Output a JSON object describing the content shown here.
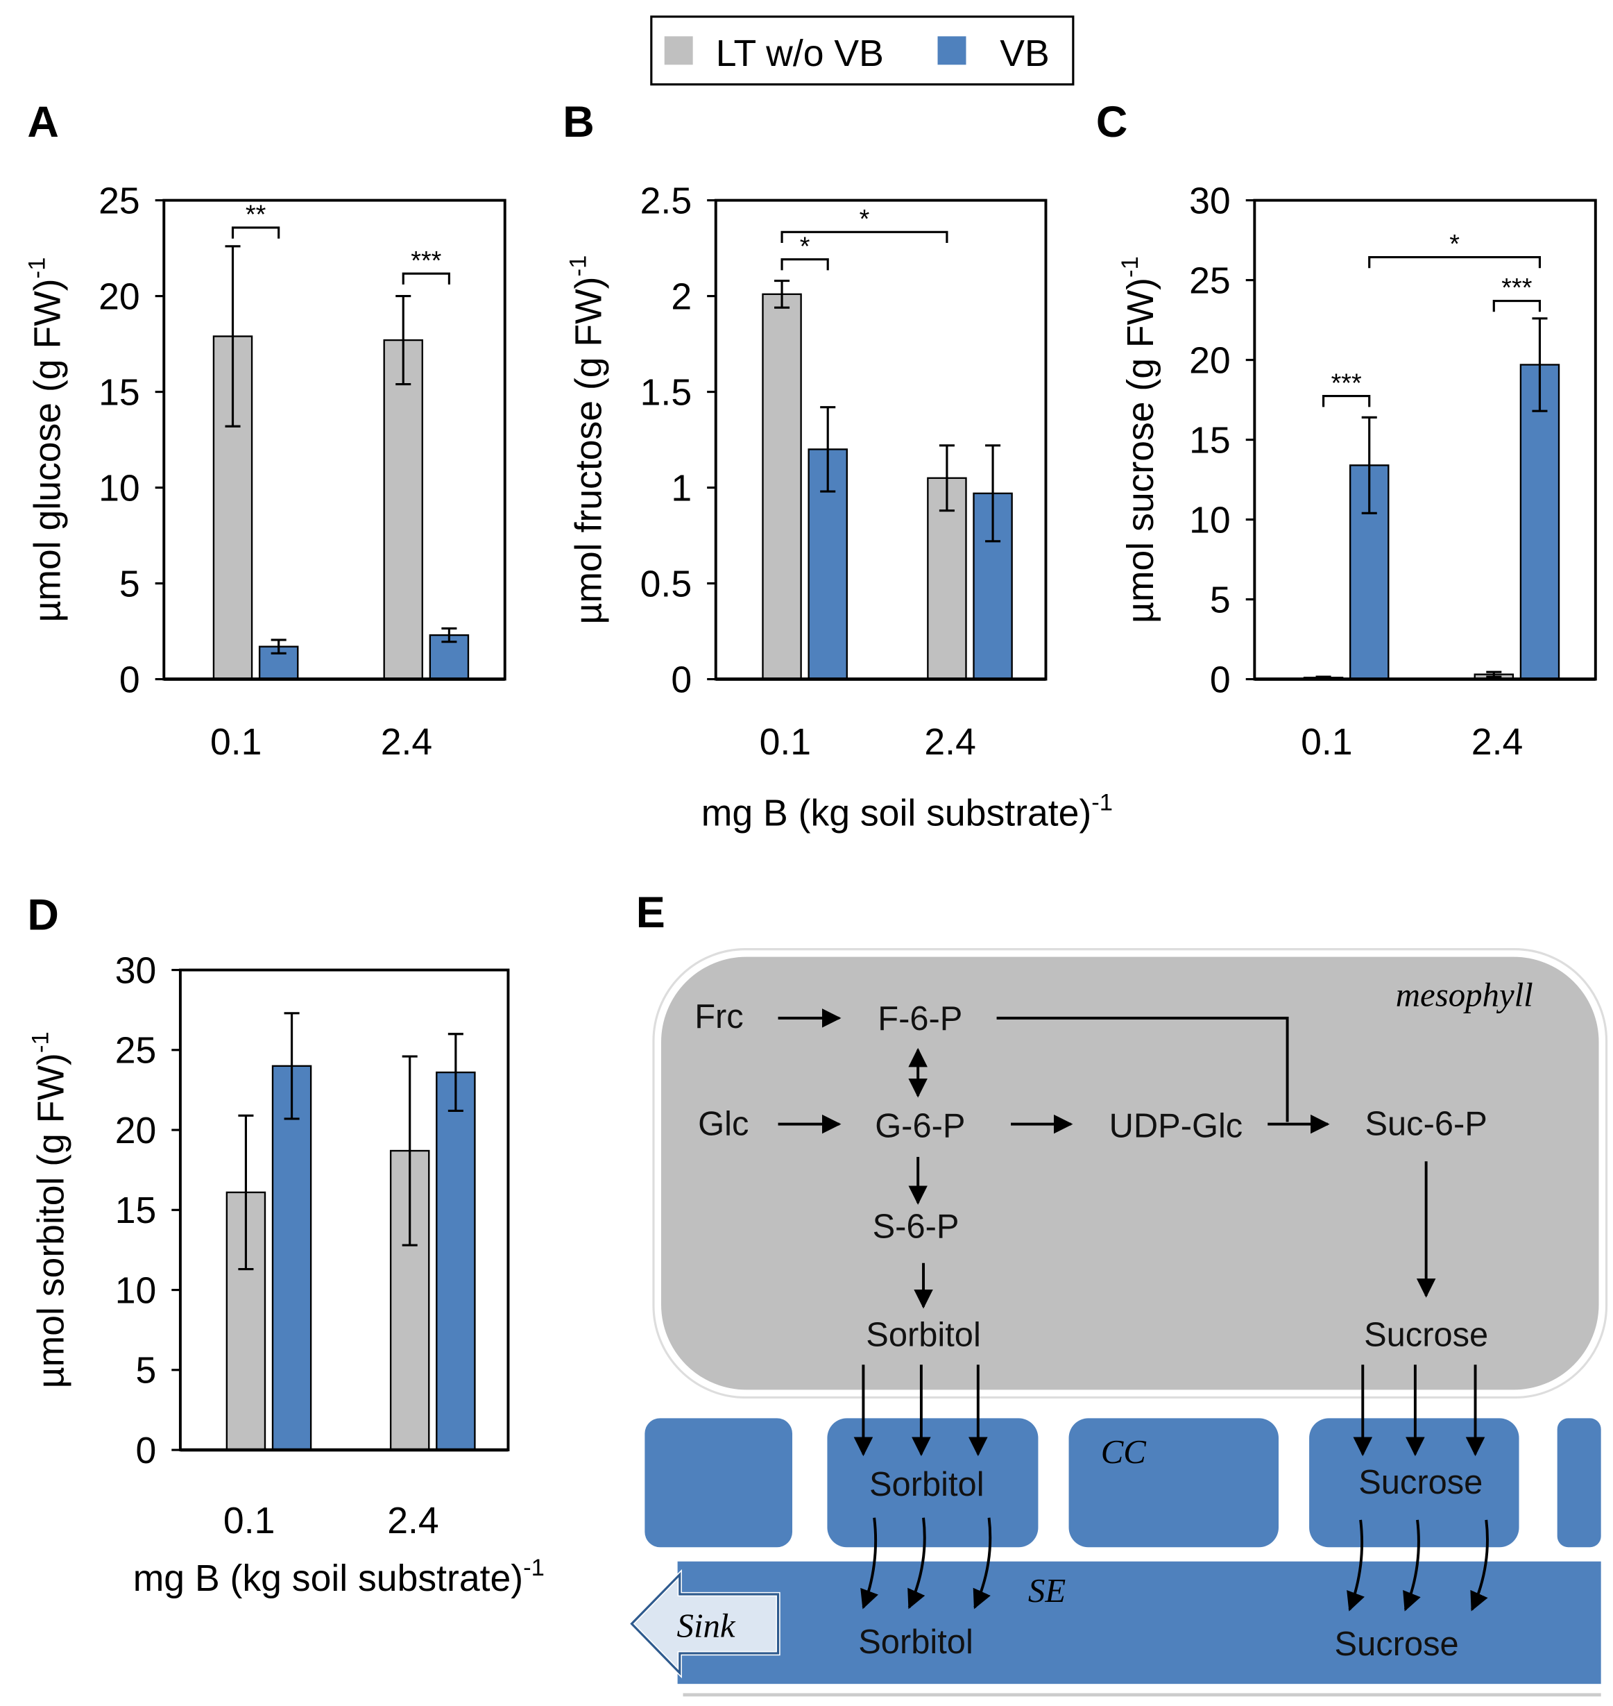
{
  "chart_data": [
    {
      "type": "bar",
      "label": "A",
      "ylabel": "µmol glucose (g FW)",
      "ylabel_sup": "-1",
      "categories": [
        "0.1",
        "2.4"
      ],
      "ylim": [
        0,
        25
      ],
      "yticks": [
        0,
        5,
        10,
        15,
        20,
        25
      ],
      "series": [
        {
          "name": "LT w/o VB",
          "color": "#c0c0c0",
          "values": [
            17.9,
            17.7
          ],
          "errors": [
            4.7,
            2.3
          ]
        },
        {
          "name": "VB",
          "color": "#4f81bd",
          "values": [
            1.7,
            2.3
          ],
          "errors": [
            0.35,
            0.35
          ]
        }
      ],
      "annotations": [
        "**",
        "***"
      ]
    },
    {
      "type": "bar",
      "label": "B",
      "ylabel": "µmol fructose (g FW)",
      "ylabel_sup": "-1",
      "xlabel": "mg B (kg soil substrate)",
      "xlabel_sup": "-1",
      "categories": [
        "0.1",
        "2.4"
      ],
      "ylim": [
        0,
        2.5
      ],
      "yticks": [
        0,
        0.5,
        1,
        1.5,
        2,
        2.5
      ],
      "series": [
        {
          "name": "LT w/o VB",
          "color": "#c0c0c0",
          "values": [
            2.01,
            1.05
          ],
          "errors": [
            0.07,
            0.17
          ]
        },
        {
          "name": "VB",
          "color": "#4f81bd",
          "values": [
            1.2,
            0.97
          ],
          "errors": [
            0.22,
            0.25
          ]
        }
      ],
      "annotations": [
        "*",
        "*"
      ]
    },
    {
      "type": "bar",
      "label": "C",
      "ylabel": "µmol sucrose (g FW)",
      "ylabel_sup": "-1",
      "categories": [
        "0.1",
        "2.4"
      ],
      "ylim": [
        0,
        30
      ],
      "yticks": [
        0,
        5,
        10,
        15,
        20,
        25,
        30
      ],
      "series": [
        {
          "name": "LT w/o VB",
          "color": "#c0c0c0",
          "values": [
            0.1,
            0.3
          ],
          "errors": [
            0.05,
            0.15
          ]
        },
        {
          "name": "VB",
          "color": "#4f81bd",
          "values": [
            13.4,
            19.7
          ],
          "errors": [
            3.0,
            2.9
          ]
        }
      ],
      "annotations": [
        "***",
        "***",
        "*"
      ]
    },
    {
      "type": "bar",
      "label": "D",
      "ylabel": "µmol sorbitol (g FW)",
      "ylabel_sup": "-1",
      "xlabel": "mg B (kg soil substrate)",
      "xlabel_sup": "-1",
      "categories": [
        "0.1",
        "2.4"
      ],
      "ylim": [
        0,
        30
      ],
      "yticks": [
        0,
        5,
        10,
        15,
        20,
        25,
        30
      ],
      "series": [
        {
          "name": "LT w/o VB",
          "color": "#c0c0c0",
          "values": [
            16.1,
            18.7
          ],
          "errors": [
            4.8,
            5.9
          ]
        },
        {
          "name": "VB",
          "color": "#4f81bd",
          "values": [
            24.0,
            23.6
          ],
          "errors": [
            3.3,
            2.4
          ]
        }
      ]
    }
  ],
  "diagram": {
    "label": "E",
    "mesophyll": "mesophyll",
    "cc": "CC",
    "se": "SE",
    "sink": "Sink",
    "nodes": [
      "Frc",
      "F-6-P",
      "Glc",
      "G-6-P",
      "UDP-Glc",
      "Suc-6-P",
      "S-6-P",
      "Sorbitol",
      "Sucrose",
      "Sorbitol",
      "Sucrose",
      "Sorbitol",
      "Sucrose"
    ]
  }
}
